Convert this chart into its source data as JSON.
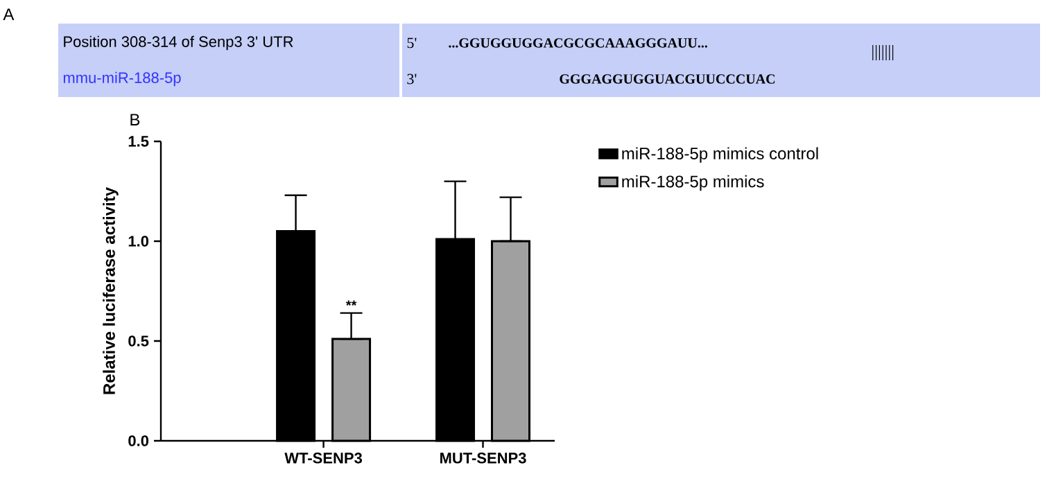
{
  "chart_data": [
    {
      "type": "other",
      "title": "A",
      "annotations": [
        "Position 308-314 of Senp3 3' UTR",
        "mmu-miR-188-5p",
        "5'",
        "...GGUGGUGGACGCGCAAAGGGAUU...",
        "|||||||",
        "3'",
        "GGGAGGUGGUACGUUCCCUAC"
      ]
    },
    {
      "type": "bar",
      "title": "B",
      "ylabel": "Relative luciferase activity",
      "categories": [
        "WT-SENP3",
        "MUT-SENP3"
      ],
      "series": [
        {
          "name": "miR-188-5p mimics control",
          "color": "#000000",
          "values": [
            1.05,
            1.01
          ],
          "errors": [
            [
              1.05,
              1.23
            ],
            [
              1.01,
              1.3
            ]
          ]
        },
        {
          "name": "miR-188-5p mimics",
          "color": "#a0a0a0",
          "values": [
            0.51,
            1.0
          ],
          "errors": [
            [
              0.51,
              0.64
            ],
            [
              1.0,
              1.22
            ]
          ]
        }
      ],
      "ylim": [
        0,
        1.5
      ],
      "yticks": [
        {
          "value": 0,
          "label": "0.0"
        },
        {
          "value": 0.5,
          "label": "0.5"
        },
        {
          "value": 1,
          "label": "1.0"
        },
        {
          "value": 1.5,
          "label": "1.5"
        }
      ],
      "legend": "top right",
      "annotations": [
        "**"
      ]
    }
  ]
}
